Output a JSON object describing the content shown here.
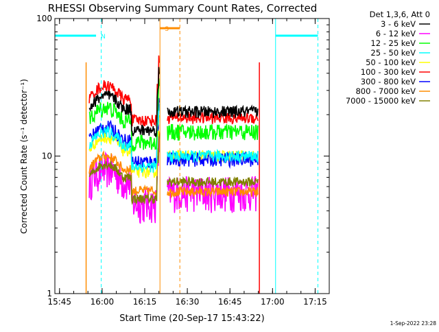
{
  "chart_data": {
    "type": "line",
    "title": "RHESSI Observing Summary Count Rates, Corrected",
    "xlabel": "Start Time (20-Sep-17 15:43:22)",
    "ylabel": "Corrected Count Rate (s⁻¹ detector⁻¹)",
    "yscale": "log",
    "ylim": [
      1,
      100
    ],
    "xlim_min": [
      0,
      1.03
    ],
    "x_units": "minutes after 15:43:22",
    "x_ticks": [
      {
        "t": 1.633,
        "label": "15:45"
      },
      {
        "t": 16.633,
        "label": "16:00"
      },
      {
        "t": 31.633,
        "label": "16:15"
      },
      {
        "t": 46.633,
        "label": "16:30"
      },
      {
        "t": 61.633,
        "label": "16:45"
      },
      {
        "t": 76.633,
        "label": "17:00"
      },
      {
        "t": 91.633,
        "label": "17:15"
      }
    ],
    "y_ticks": [
      {
        "v": 1,
        "label": "1"
      },
      {
        "v": 10,
        "label": "10"
      },
      {
        "v": 100,
        "label": "100"
      }
    ],
    "legend": {
      "header": "Det 1,3,6, Att 0",
      "placement": "right"
    },
    "footer_timestamp": "1-Sep-2022 23:28",
    "series": [
      {
        "name": "3 - 6 keV",
        "color": "#000000",
        "p1": 22,
        "p2": 21,
        "noise": 0.1
      },
      {
        "name": "6 - 12 keV",
        "color": "#ff00ff",
        "p1": 6.5,
        "p2": 5.5,
        "noise": 0.3
      },
      {
        "name": "12 - 25 keV",
        "color": "#00ff00",
        "p1": 18,
        "p2": 15,
        "noise": 0.14
      },
      {
        "name": "25 - 50 keV",
        "color": "#00ffff",
        "p1": 12,
        "p2": 10,
        "noise": 0.1
      },
      {
        "name": "50 - 100 keV",
        "color": "#ffff00",
        "p1": 11,
        "p2": 10,
        "noise": 0.1
      },
      {
        "name": "100 - 300 keV",
        "color": "#ff0000",
        "p1": 26,
        "p2": 19,
        "noise": 0.1
      },
      {
        "name": "300 - 800 keV",
        "color": "#0000ff",
        "p1": 13,
        "p2": 9.5,
        "noise": 0.12
      },
      {
        "name": "800 - 7000 keV",
        "color": "#ff8c00",
        "p1": 8,
        "p2": 5.5,
        "noise": 0.08
      },
      {
        "name": "7000 - 15000 keV",
        "color": "#808000",
        "p1": 7,
        "p2": 6.5,
        "noise": 0.08
      }
    ],
    "data_intervals": [
      {
        "start": 12.1,
        "end": 37.0
      },
      {
        "start": 39.6,
        "end": 71.5
      }
    ],
    "gap_lines": [
      {
        "t": 11.0,
        "color": "#ff8c00"
      },
      {
        "t": 72.0,
        "color": "#ff0000"
      }
    ],
    "bars": [
      {
        "label": "",
        "color": "#00ffff",
        "start": 0,
        "end": 14.5,
        "level": 75
      },
      {
        "label": "N",
        "color": "#00ffff",
        "start": 14.5,
        "end": 14.5,
        "level": 75
      },
      {
        "label": "",
        "color": "#00ffff",
        "start": 77.7,
        "end": 92.6,
        "level": 75
      },
      {
        "label": "S",
        "color": "#ff8c00",
        "start": 37.0,
        "end": 44.0,
        "level": 85
      }
    ],
    "event_lines": [
      {
        "t": 0.0,
        "color": "#00ffff",
        "style": "solid"
      },
      {
        "t": 16.3,
        "color": "#00ffff",
        "style": "dashed"
      },
      {
        "t": 37.0,
        "color": "#ff8c00",
        "style": "solid"
      },
      {
        "t": 44.0,
        "color": "#ff8c00",
        "style": "dashed"
      },
      {
        "t": 77.7,
        "color": "#00ffff",
        "style": "solid"
      },
      {
        "t": 92.6,
        "color": "#00ffff",
        "style": "dashed"
      }
    ]
  }
}
